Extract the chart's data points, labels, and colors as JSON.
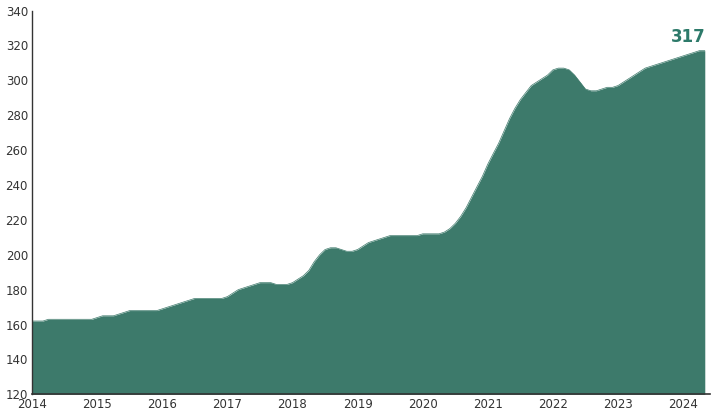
{
  "fill_color": "#3d7a6b",
  "line_color": "#3d7a6b",
  "background_color": "#ffffff",
  "label_color": "#2d7a6a",
  "ylim": [
    120,
    340
  ],
  "yticks": [
    120,
    140,
    160,
    180,
    200,
    220,
    240,
    260,
    280,
    300,
    320,
    340
  ],
  "xticks": [
    2014,
    2015,
    2016,
    2017,
    2018,
    2019,
    2020,
    2021,
    2022,
    2023,
    2024
  ],
  "annotation_value": "317",
  "annotation_fontsize": 12,
  "x": [
    2014.0,
    2014.083,
    2014.167,
    2014.25,
    2014.333,
    2014.417,
    2014.5,
    2014.583,
    2014.667,
    2014.75,
    2014.833,
    2014.917,
    2015.0,
    2015.083,
    2015.167,
    2015.25,
    2015.333,
    2015.417,
    2015.5,
    2015.583,
    2015.667,
    2015.75,
    2015.833,
    2015.917,
    2016.0,
    2016.083,
    2016.167,
    2016.25,
    2016.333,
    2016.417,
    2016.5,
    2016.583,
    2016.667,
    2016.75,
    2016.833,
    2016.917,
    2017.0,
    2017.083,
    2017.167,
    2017.25,
    2017.333,
    2017.417,
    2017.5,
    2017.583,
    2017.667,
    2017.75,
    2017.833,
    2017.917,
    2018.0,
    2018.083,
    2018.167,
    2018.25,
    2018.333,
    2018.417,
    2018.5,
    2018.583,
    2018.667,
    2018.75,
    2018.833,
    2018.917,
    2019.0,
    2019.083,
    2019.167,
    2019.25,
    2019.333,
    2019.417,
    2019.5,
    2019.583,
    2019.667,
    2019.75,
    2019.833,
    2019.917,
    2020.0,
    2020.083,
    2020.167,
    2020.25,
    2020.333,
    2020.417,
    2020.5,
    2020.583,
    2020.667,
    2020.75,
    2020.833,
    2020.917,
    2021.0,
    2021.083,
    2021.167,
    2021.25,
    2021.333,
    2021.417,
    2021.5,
    2021.583,
    2021.667,
    2021.75,
    2021.833,
    2021.917,
    2022.0,
    2022.083,
    2022.167,
    2022.25,
    2022.333,
    2022.417,
    2022.5,
    2022.583,
    2022.667,
    2022.75,
    2022.833,
    2022.917,
    2023.0,
    2023.083,
    2023.167,
    2023.25,
    2023.333,
    2023.417,
    2023.5,
    2023.583,
    2023.667,
    2023.75,
    2023.833,
    2023.917,
    2024.0,
    2024.083,
    2024.167,
    2024.25,
    2024.333
  ],
  "y": [
    162,
    162,
    162,
    163,
    163,
    163,
    163,
    163,
    163,
    163,
    163,
    163,
    164,
    165,
    165,
    165,
    166,
    167,
    168,
    168,
    168,
    168,
    168,
    168,
    169,
    170,
    171,
    172,
    173,
    174,
    175,
    175,
    175,
    175,
    175,
    175,
    176,
    178,
    180,
    181,
    182,
    183,
    184,
    184,
    184,
    183,
    183,
    183,
    184,
    186,
    188,
    191,
    196,
    200,
    203,
    204,
    204,
    203,
    202,
    202,
    203,
    205,
    207,
    208,
    209,
    210,
    211,
    211,
    211,
    211,
    211,
    211,
    212,
    212,
    212,
    212,
    213,
    215,
    218,
    222,
    227,
    233,
    239,
    245,
    252,
    258,
    264,
    271,
    278,
    284,
    289,
    293,
    297,
    299,
    301,
    303,
    306,
    307,
    307,
    306,
    303,
    299,
    295,
    294,
    294,
    295,
    296,
    296,
    297,
    299,
    301,
    303,
    305,
    307,
    308,
    309,
    310,
    311,
    312,
    313,
    314,
    315,
    316,
    317,
    317
  ]
}
